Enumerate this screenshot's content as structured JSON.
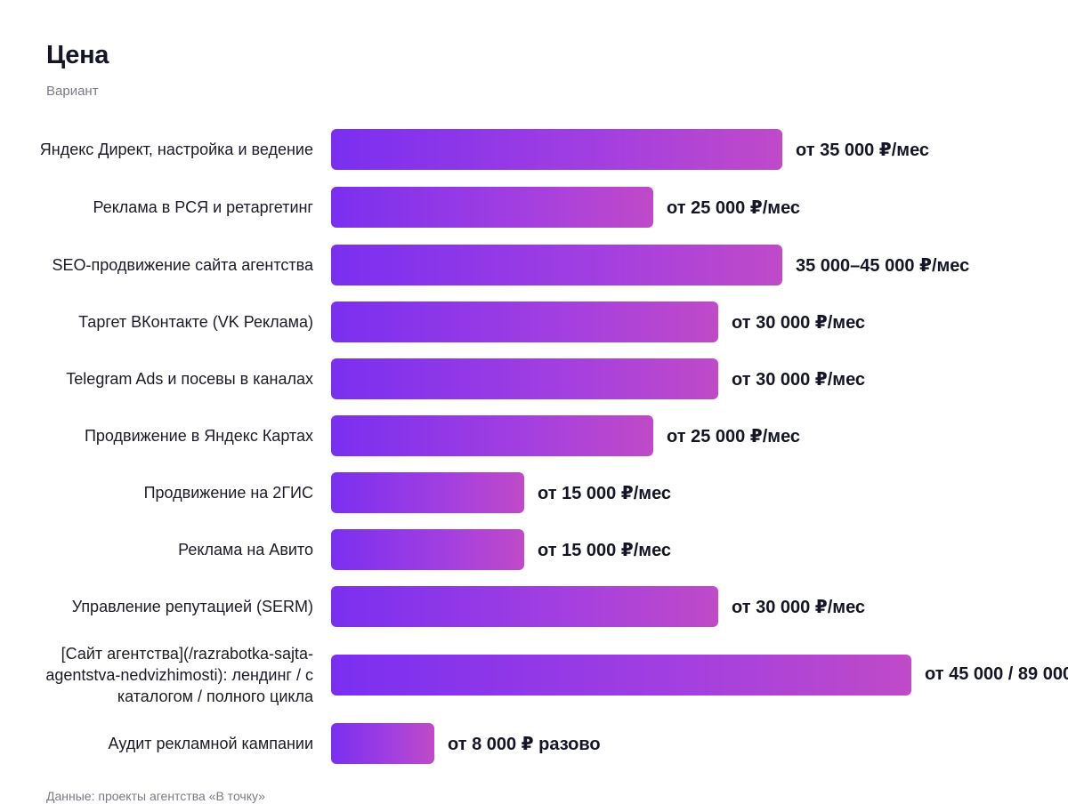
{
  "title": "Цена",
  "subtitle": "Вариант",
  "footer": "Данные: проекты агентства «В точку»",
  "chart_data": {
    "type": "bar",
    "orientation": "horizontal",
    "title": "Цена",
    "ylabel": "Вариант",
    "colors": {
      "bar_start": "#7a2ff0",
      "bar_end": "#c04ac8"
    },
    "categories": [
      "Яндекс Директ, настройка и ведение",
      "Реклама в РСЯ и ретаргетинг",
      "SEO-продвижение сайта агентства",
      "Таргет ВКонтакте (VK Реклама)",
      "Telegram Ads и посевы в каналах",
      "Продвижение в Яндекс Картах",
      "Продвижение на 2ГИС",
      "Реклама на Авито",
      "Управление репутацией (SERM)",
      "[Сайт агентства](/razrabotka-sajta-agentstva-nedvizhimosti): лендинг / с каталогом / полного цикла",
      "Аудит рекламной кампании"
    ],
    "values": [
      35000,
      25000,
      35000,
      30000,
      30000,
      25000,
      15000,
      15000,
      30000,
      45000,
      8000
    ],
    "value_labels": [
      "от 35 000 ₽/мес",
      "от 25 000 ₽/мес",
      "35 000–45 000 ₽/мес",
      "от 30 000 ₽/мес",
      "от 30 000 ₽/мес",
      "от 25 000 ₽/мес",
      "от 15 000 ₽/мес",
      "от 15 000 ₽/мес",
      "от 30 000 ₽/мес",
      "от 45 000 / 89 000",
      "от 8 000 ₽ разово"
    ],
    "xlim": [
      0,
      45000
    ],
    "grid": false
  }
}
